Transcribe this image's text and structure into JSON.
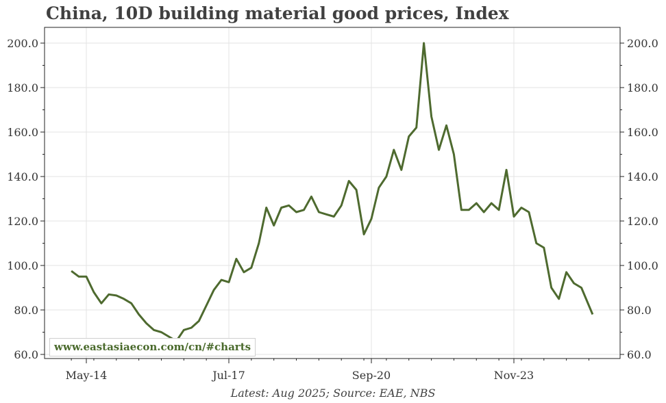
{
  "title": "China, 10D building material good prices, Index",
  "footer": "Latest: Aug 2025; Source: EAE, NBS",
  "watermark": "www.eastasiaecon.com/cn/#charts",
  "colors": {
    "line": "#4e6a2f",
    "grid": "#e3e3e3",
    "text": "#404040",
    "watermark": "#4a6a2c"
  },
  "chart_data": {
    "type": "line",
    "title": "China, 10D building material good prices, Index",
    "x_tick_labels": [
      "May-14",
      "Jul-17",
      "Sep-20",
      "Nov-23"
    ],
    "x_tick_dates": [
      "2014-05",
      "2017-07",
      "2020-09",
      "2023-11"
    ],
    "ylim": [
      60,
      200
    ],
    "y_ticks": [
      "60.0",
      "80.0",
      "100.0",
      "120.0",
      "140.0",
      "160.0",
      "180.0",
      "200.0"
    ],
    "grid": true,
    "dual_y_axis": true,
    "series": [
      {
        "x": [
          "2014-01",
          "2014-03",
          "2014-05",
          "2014-07",
          "2014-09",
          "2014-11",
          "2015-01",
          "2015-03",
          "2015-05",
          "2015-07",
          "2015-09",
          "2015-11",
          "2016-01",
          "2016-03",
          "2016-05",
          "2016-07",
          "2016-09",
          "2016-11",
          "2017-01",
          "2017-03",
          "2017-05",
          "2017-07",
          "2017-09",
          "2017-11",
          "2018-01",
          "2018-03",
          "2018-05",
          "2018-07",
          "2018-09",
          "2018-11",
          "2019-01",
          "2019-03",
          "2019-05",
          "2019-07",
          "2019-09",
          "2019-11",
          "2020-01",
          "2020-03",
          "2020-05",
          "2020-07",
          "2020-09",
          "2020-11",
          "2021-01",
          "2021-03",
          "2021-05",
          "2021-07",
          "2021-09",
          "2021-11",
          "2022-01",
          "2022-03",
          "2022-05",
          "2022-07",
          "2022-09",
          "2022-11",
          "2023-01",
          "2023-03",
          "2023-05",
          "2023-07",
          "2023-09",
          "2023-11",
          "2024-01",
          "2024-03",
          "2024-05",
          "2024-07",
          "2024-09",
          "2024-11",
          "2025-01",
          "2025-03",
          "2025-05",
          "2025-08"
        ],
        "values": [
          97.5,
          95,
          95,
          88,
          83,
          87,
          86.5,
          85,
          83,
          78,
          74,
          71,
          70,
          68,
          66,
          71,
          72,
          75,
          82,
          89,
          93.5,
          92.5,
          103,
          97,
          99,
          110,
          126,
          118,
          126,
          127,
          124,
          125,
          131,
          124,
          123,
          122,
          127,
          138,
          134,
          114,
          121,
          135,
          140,
          152,
          143,
          158,
          162,
          200,
          167,
          152,
          163,
          150,
          125,
          125,
          128,
          124,
          128,
          125,
          143,
          122,
          126,
          124,
          110,
          108,
          90,
          85,
          97,
          92,
          90,
          78
        ],
        "note": "Series drawn as a single line"
      }
    ]
  }
}
